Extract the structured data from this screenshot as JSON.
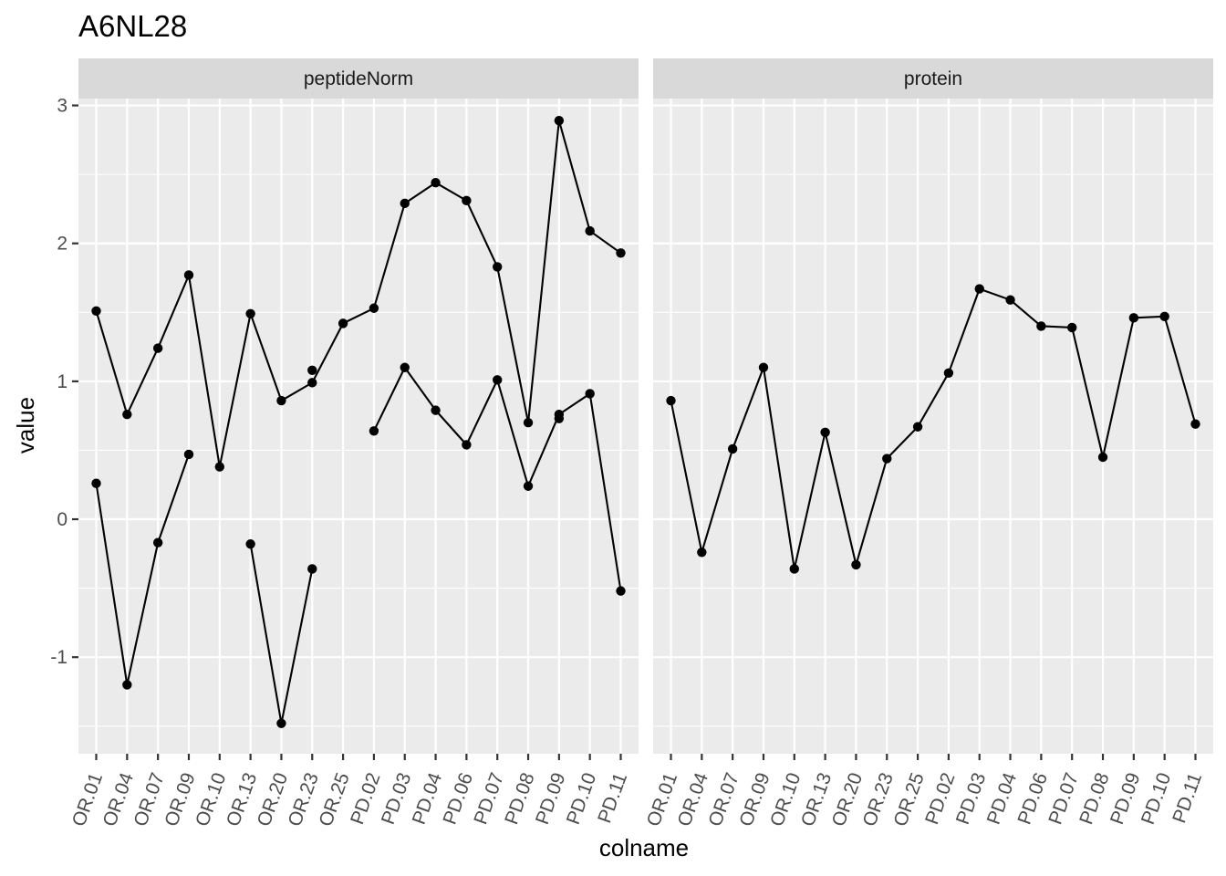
{
  "chart_data": {
    "type": "line",
    "title": "A6NL28",
    "xlabel": "colname",
    "ylabel": "value",
    "categories": [
      "OR.01",
      "OR.04",
      "OR.07",
      "OR.09",
      "OR.10",
      "OR.13",
      "OR.20",
      "OR.23",
      "OR.25",
      "PD.02",
      "PD.03",
      "PD.04",
      "PD.06",
      "PD.07",
      "PD.08",
      "PD.09",
      "PD.10",
      "PD.11"
    ],
    "ylim": [
      -1.7,
      3.05
    ],
    "yticks": [
      -1,
      0,
      1,
      2,
      3
    ],
    "ytick_labels": [
      "-1",
      "0",
      "1",
      "2",
      "3"
    ],
    "grid": true,
    "panel_background": "#ebebeb",
    "strip_background": "#d9d9d9",
    "line_color": "#000000",
    "facets": [
      {
        "label": "peptideNorm",
        "series": [
          {
            "values": [
              1.51,
              0.76,
              1.24,
              1.77,
              0.38,
              1.49,
              0.86,
              0.99,
              1.42,
              1.53,
              2.29,
              2.44,
              2.31,
              1.83,
              0.7,
              2.89,
              2.09,
              1.93
            ]
          },
          {
            "values": [
              0.26,
              -1.2,
              -0.17,
              0.47,
              null,
              -0.18,
              -1.48,
              -0.36,
              null,
              0.64,
              1.1,
              0.79,
              0.54,
              1.01,
              0.24,
              0.76,
              0.91,
              -0.52
            ]
          },
          {
            "values": [
              null,
              null,
              null,
              null,
              null,
              null,
              null,
              1.08,
              null,
              null,
              null,
              null,
              null,
              null,
              null,
              0.73,
              null,
              null
            ]
          }
        ]
      },
      {
        "label": "protein",
        "series": [
          {
            "values": [
              0.86,
              -0.24,
              0.51,
              1.1,
              -0.36,
              0.63,
              -0.33,
              0.44,
              0.67,
              1.06,
              1.67,
              1.59,
              1.4,
              1.39,
              0.45,
              1.46,
              1.47,
              0.69
            ]
          }
        ]
      }
    ]
  }
}
